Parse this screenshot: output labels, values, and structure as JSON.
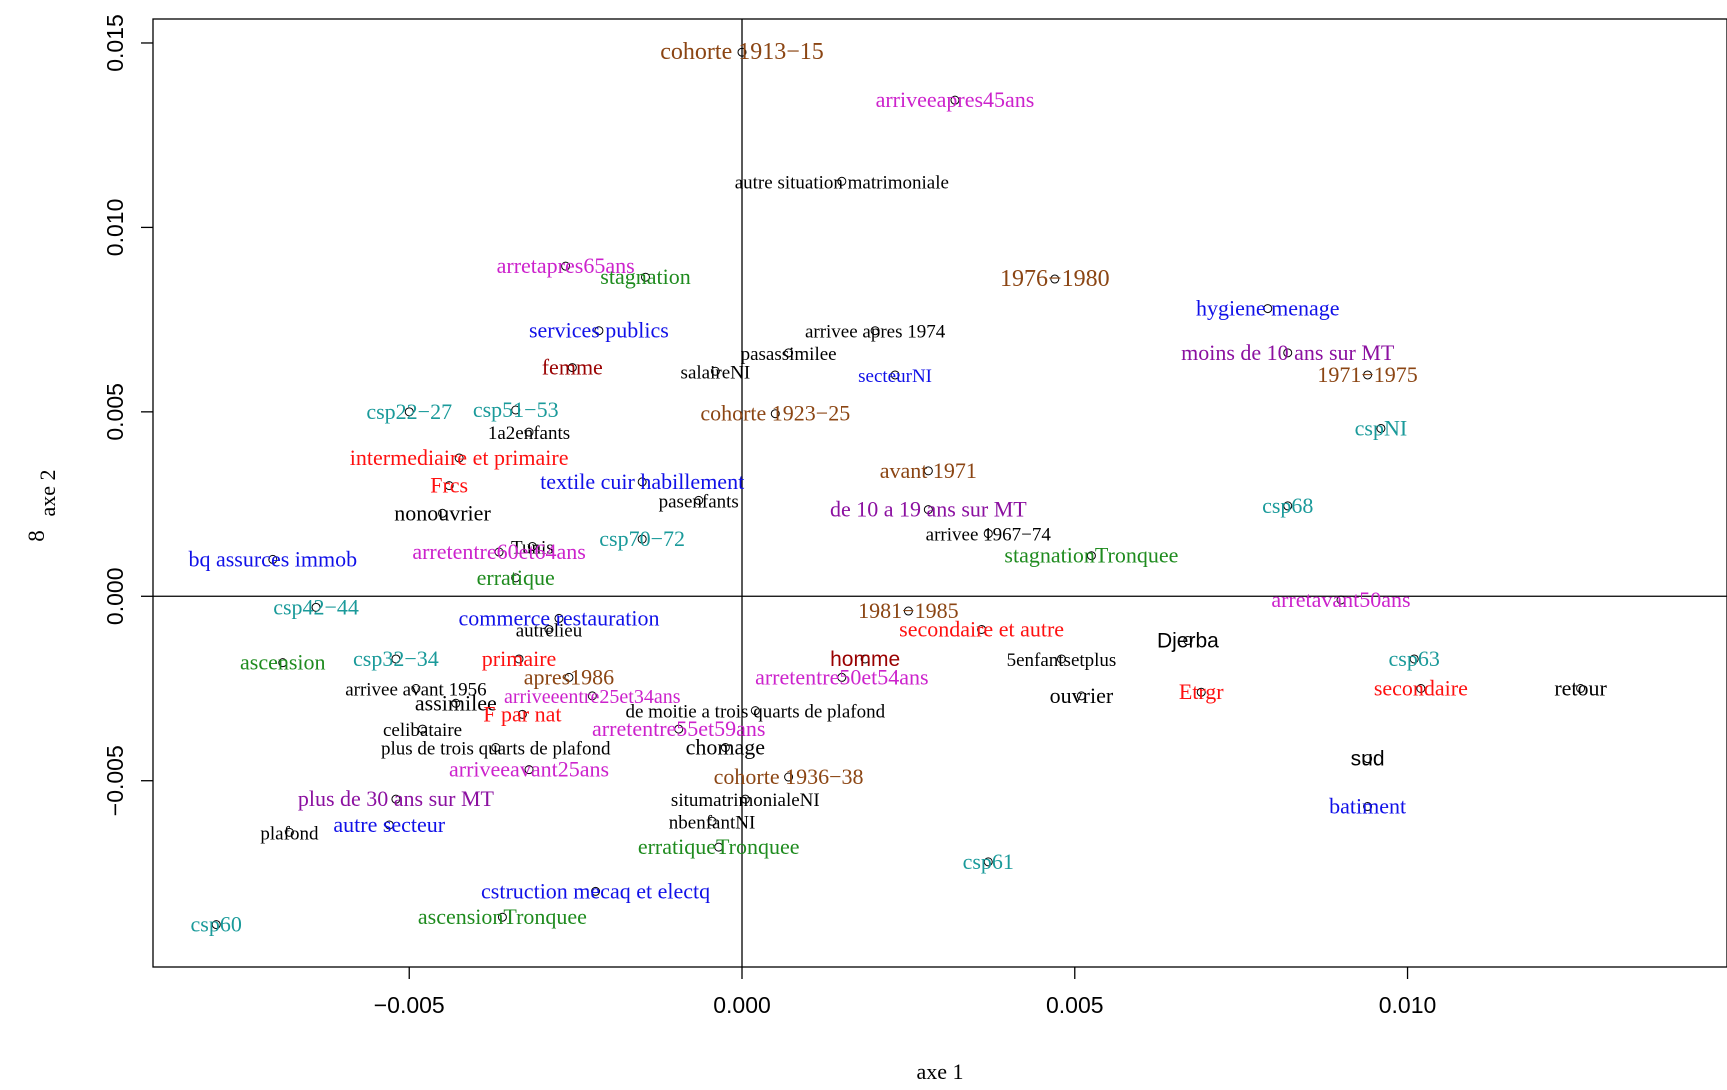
{
  "chart_data": {
    "type": "scatter",
    "title": "",
    "xlabel": "axe 1",
    "ylabel": "axe 2",
    "ylabel_prefix": "8",
    "xlim": [
      -0.00885,
      0.0148
    ],
    "ylim": [
      -0.01005,
      0.01565
    ],
    "x_ticks": [
      -0.005,
      0.0,
      0.005,
      0.01
    ],
    "x_tick_labels": [
      "−0.005",
      "0.000",
      "0.005",
      "0.010"
    ],
    "y_ticks": [
      -0.005,
      0.0,
      0.005,
      0.01,
      0.015
    ],
    "y_tick_labels": [
      "−0.005",
      "0.000",
      "0.005",
      "0.010",
      "0.015"
    ],
    "reference_lines": {
      "x": 0,
      "y": 0
    },
    "grid": false,
    "legend": "none",
    "colors": {
      "black": "#000000",
      "brown": "#8b4513",
      "magenta": "#cc22cc",
      "green": "#1e8b1e",
      "blue": "#1010e8",
      "darkred": "#990000",
      "teal": "#1a9a9a",
      "red": "#ff1010",
      "purple": "#8b10a0"
    },
    "points": [
      {
        "label": "cohorte 1913−15",
        "x": 0.0,
        "y": 0.01475,
        "color": "brown",
        "size": 24
      },
      {
        "label": "arriveeapres45ans",
        "x": 0.0032,
        "y": 0.01345,
        "color": "magenta",
        "size": 22
      },
      {
        "label": "autre situation matrimoniale",
        "x": 0.0015,
        "y": 0.01125,
        "color": "black",
        "size": 19
      },
      {
        "label": "arretapres65ans",
        "x": -0.00265,
        "y": 0.00895,
        "color": "magenta",
        "size": 22
      },
      {
        "label": "stagnation",
        "x": -0.00145,
        "y": 0.00865,
        "color": "green",
        "size": 22
      },
      {
        "label": "1976−1980",
        "x": 0.0047,
        "y": 0.0086,
        "color": "brown",
        "size": 24
      },
      {
        "label": "hygiene menage",
        "x": 0.0079,
        "y": 0.0078,
        "color": "blue",
        "size": 22
      },
      {
        "label": "services publics",
        "x": -0.00215,
        "y": 0.0072,
        "color": "blue",
        "size": 22
      },
      {
        "label": "arrivee apres 1974",
        "x": 0.002,
        "y": 0.0072,
        "color": "black",
        "size": 19
      },
      {
        "label": "pasassimilee",
        "x": 0.0007,
        "y": 0.0066,
        "color": "black",
        "size": 19
      },
      {
        "label": "moins de 10 ans sur MT",
        "x": 0.0082,
        "y": 0.0066,
        "color": "purple",
        "size": 22
      },
      {
        "label": "femme",
        "x": -0.00255,
        "y": 0.0062,
        "color": "darkred",
        "size": 22
      },
      {
        "label": "salaireNI",
        "x": -0.0004,
        "y": 0.0061,
        "color": "black",
        "size": 19
      },
      {
        "label": "secteurNI",
        "x": 0.0023,
        "y": 0.006,
        "color": "blue",
        "size": 19
      },
      {
        "label": "1971−1975",
        "x": 0.0094,
        "y": 0.006,
        "color": "brown",
        "size": 22
      },
      {
        "label": "csp22−27",
        "x": -0.005,
        "y": 0.005,
        "color": "teal",
        "size": 22
      },
      {
        "label": "csp51−53",
        "x": -0.0034,
        "y": 0.00505,
        "color": "teal",
        "size": 22
      },
      {
        "label": "1a2enfants",
        "x": -0.0032,
        "y": 0.00445,
        "color": "black",
        "size": 19
      },
      {
        "label": "cohorte 1923−25",
        "x": 0.0005,
        "y": 0.00495,
        "color": "brown",
        "size": 22
      },
      {
        "label": "cspNI",
        "x": 0.0096,
        "y": 0.00455,
        "color": "teal",
        "size": 22
      },
      {
        "label": "intermediaire et primaire",
        "x": -0.00425,
        "y": 0.00375,
        "color": "red",
        "size": 22
      },
      {
        "label": "avant 1971",
        "x": 0.0028,
        "y": 0.0034,
        "color": "brown",
        "size": 22
      },
      {
        "label": "textile cuir habillement",
        "x": -0.0015,
        "y": 0.0031,
        "color": "blue",
        "size": 22
      },
      {
        "label": "Frcs",
        "x": -0.0044,
        "y": 0.003,
        "color": "red",
        "size": 22
      },
      {
        "label": "pasenfants",
        "x": -0.00065,
        "y": 0.0026,
        "color": "black",
        "size": 19
      },
      {
        "label": "de 10 a 19 ans sur MT",
        "x": 0.0028,
        "y": 0.00235,
        "color": "purple",
        "size": 22
      },
      {
        "label": "csp68",
        "x": 0.0082,
        "y": 0.00245,
        "color": "teal",
        "size": 22
      },
      {
        "label": "nonouvrier",
        "x": -0.0045,
        "y": 0.00225,
        "color": "black",
        "size": 22
      },
      {
        "label": "Tunis",
        "x": -0.00315,
        "y": 0.00135,
        "color": "black",
        "size": 19
      },
      {
        "label": "csp70−72",
        "x": -0.0015,
        "y": 0.00155,
        "color": "teal",
        "size": 22
      },
      {
        "label": "arrivee 1967−74",
        "x": 0.0037,
        "y": 0.0017,
        "color": "black",
        "size": 19
      },
      {
        "label": "bq assurces immob",
        "x": -0.00705,
        "y": 0.001,
        "color": "blue",
        "size": 22
      },
      {
        "label": "arretentre60et64ans",
        "x": -0.00365,
        "y": 0.0012,
        "color": "magenta",
        "size": 22
      },
      {
        "label": "stagnationTronquee",
        "x": 0.00525,
        "y": 0.0011,
        "color": "green",
        "size": 22
      },
      {
        "label": "erratique",
        "x": -0.0034,
        "y": 0.0005,
        "color": "green",
        "size": 22
      },
      {
        "label": "csp42−44",
        "x": -0.0064,
        "y": -0.0003,
        "color": "teal",
        "size": 22
      },
      {
        "label": "arretavant50ans",
        "x": 0.009,
        "y": -0.0001,
        "color": "magenta",
        "size": 22
      },
      {
        "label": "1981−1985",
        "x": 0.0025,
        "y": -0.0004,
        "color": "brown",
        "size": 22
      },
      {
        "label": "commerce restauration",
        "x": -0.00275,
        "y": -0.0006,
        "color": "blue",
        "size": 22
      },
      {
        "label": "autrelieu",
        "x": -0.0029,
        "y": -0.0009,
        "color": "black",
        "size": 19
      },
      {
        "label": "secondaire et autre",
        "x": 0.0036,
        "y": -0.0009,
        "color": "red",
        "size": 22
      },
      {
        "label": "Djerba",
        "x": 0.0067,
        "y": -0.0012,
        "color": "black",
        "size": 21,
        "font": "sans"
      },
      {
        "label": "ascension",
        "x": -0.0069,
        "y": -0.0018,
        "color": "green",
        "size": 22
      },
      {
        "label": "csp32−34",
        "x": -0.0052,
        "y": -0.0017,
        "color": "teal",
        "size": 22
      },
      {
        "label": "primaire",
        "x": -0.00335,
        "y": -0.0017,
        "color": "red",
        "size": 22
      },
      {
        "label": "homme",
        "x": 0.00185,
        "y": -0.0017,
        "color": "darkred",
        "size": 21,
        "font": "sans"
      },
      {
        "label": "5enfantsetplus",
        "x": 0.0048,
        "y": -0.0017,
        "color": "black",
        "size": 19
      },
      {
        "label": "csp63",
        "x": 0.0101,
        "y": -0.0017,
        "color": "teal",
        "size": 22
      },
      {
        "label": "apres1986",
        "x": -0.0026,
        "y": -0.0022,
        "color": "brown",
        "size": 22
      },
      {
        "label": "arretentre50et54ans",
        "x": 0.0015,
        "y": -0.0022,
        "color": "magenta",
        "size": 22
      },
      {
        "label": "arrivee avant 1956",
        "x": -0.0049,
        "y": -0.0025,
        "color": "black",
        "size": 19
      },
      {
        "label": "ouvrier",
        "x": 0.0051,
        "y": -0.0027,
        "color": "black",
        "size": 22
      },
      {
        "label": "Etrgr",
        "x": 0.0069,
        "y": -0.0026,
        "color": "red",
        "size": 22
      },
      {
        "label": "secondaire",
        "x": 0.0102,
        "y": -0.0025,
        "color": "red",
        "size": 22
      },
      {
        "label": "retour",
        "x": 0.0126,
        "y": -0.0025,
        "color": "black",
        "size": 22
      },
      {
        "label": "arriveeentre25et34ans",
        "x": -0.00225,
        "y": -0.0027,
        "color": "magenta",
        "size": 20
      },
      {
        "label": "assimilee",
        "x": -0.0043,
        "y": -0.0029,
        "color": "black",
        "size": 22
      },
      {
        "label": "de moitie a trois quarts de plafond",
        "x": 0.0002,
        "y": -0.0031,
        "color": "black",
        "size": 19
      },
      {
        "label": "F par nat",
        "x": -0.0033,
        "y": -0.0032,
        "color": "red",
        "size": 22
      },
      {
        "label": "celibataire",
        "x": -0.0048,
        "y": -0.0036,
        "color": "black",
        "size": 19
      },
      {
        "label": "arretentre55et59ans",
        "x": -0.00095,
        "y": -0.0036,
        "color": "magenta",
        "size": 22
      },
      {
        "label": "plus de trois quarts de plafond",
        "x": -0.0037,
        "y": -0.0041,
        "color": "black",
        "size": 19
      },
      {
        "label": "chomage",
        "x": -0.00025,
        "y": -0.0041,
        "color": "black",
        "size": 22
      },
      {
        "label": "sud",
        "x": 0.0094,
        "y": -0.0044,
        "color": "black",
        "size": 21,
        "font": "sans"
      },
      {
        "label": "arriveeavant25ans",
        "x": -0.0032,
        "y": -0.0047,
        "color": "magenta",
        "size": 22
      },
      {
        "label": "cohorte 1936−38",
        "x": 0.0007,
        "y": -0.0049,
        "color": "brown",
        "size": 22
      },
      {
        "label": "plus de 30 ans sur MT",
        "x": -0.0052,
        "y": -0.0055,
        "color": "purple",
        "size": 22
      },
      {
        "label": "situmatrimonialeNI",
        "x": 5e-05,
        "y": -0.0055,
        "color": "black",
        "size": 19
      },
      {
        "label": "batiment",
        "x": 0.0094,
        "y": -0.0057,
        "color": "blue",
        "size": 22
      },
      {
        "label": "nbenfantNI",
        "x": -0.00045,
        "y": -0.0061,
        "color": "black",
        "size": 19
      },
      {
        "label": "plafond",
        "x": -0.0068,
        "y": -0.0064,
        "color": "black",
        "size": 19
      },
      {
        "label": "autre secteur",
        "x": -0.0053,
        "y": -0.0062,
        "color": "blue",
        "size": 22
      },
      {
        "label": "erratiqueTronquee",
        "x": -0.00035,
        "y": -0.0068,
        "color": "green",
        "size": 22
      },
      {
        "label": "csp61",
        "x": 0.0037,
        "y": -0.0072,
        "color": "teal",
        "size": 22
      },
      {
        "label": "cstruction mecaq et electq",
        "x": -0.0022,
        "y": -0.008,
        "color": "blue",
        "size": 22
      },
      {
        "label": "ascensionTronquee",
        "x": -0.0036,
        "y": -0.0087,
        "color": "green",
        "size": 22
      },
      {
        "label": "csp60",
        "x": -0.0079,
        "y": -0.0089,
        "color": "teal",
        "size": 22
      }
    ]
  }
}
